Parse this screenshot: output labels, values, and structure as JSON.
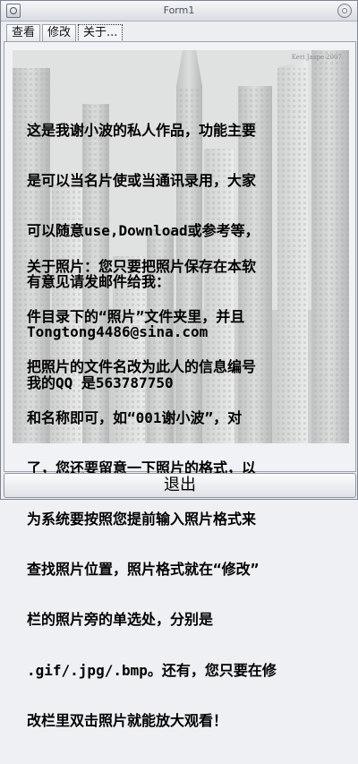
{
  "window": {
    "title": "Form1"
  },
  "tabs": [
    {
      "label": "查看",
      "active": false
    },
    {
      "label": "修改",
      "active": false
    },
    {
      "label": "关于...",
      "active": true
    }
  ],
  "photo": {
    "watermark": "Keri Jaspe 2007"
  },
  "about_text": {
    "paragraph1": [
      "这是我谢小波的私人作品，功能主要",
      "是可以当名片使或当通讯录用，大家",
      "可以随意use,Download或参考等，",
      "有意见请发邮件给我：",
      "Tongtong4486@sina.com",
      "我的QQ 是563787750"
    ],
    "paragraph2": [
      "关于照片：您只要把照片保存在本软",
      "件目录下的“照片”文件夹里，并且",
      "把照片的文件名改为此人的信息编号",
      "和名称即可，如“001谢小波”，对",
      "了，您还要留意一下照片的格式，以",
      "为系统要按照您提前输入照片格式来",
      "查找照片位置，照片格式就在“修改”",
      "栏的照片旁的单选处，分别是",
      ".gif/.jpg/.bmp。还有，您只要在修",
      "改栏里双击照片就能放大观看！"
    ]
  },
  "exit_button": {
    "label": "退出"
  },
  "colors": {
    "text": "#000000",
    "window_bg": "#eceef2",
    "titlebar_top": "#f6f7f9",
    "titlebar_bottom": "#d9dce2"
  }
}
